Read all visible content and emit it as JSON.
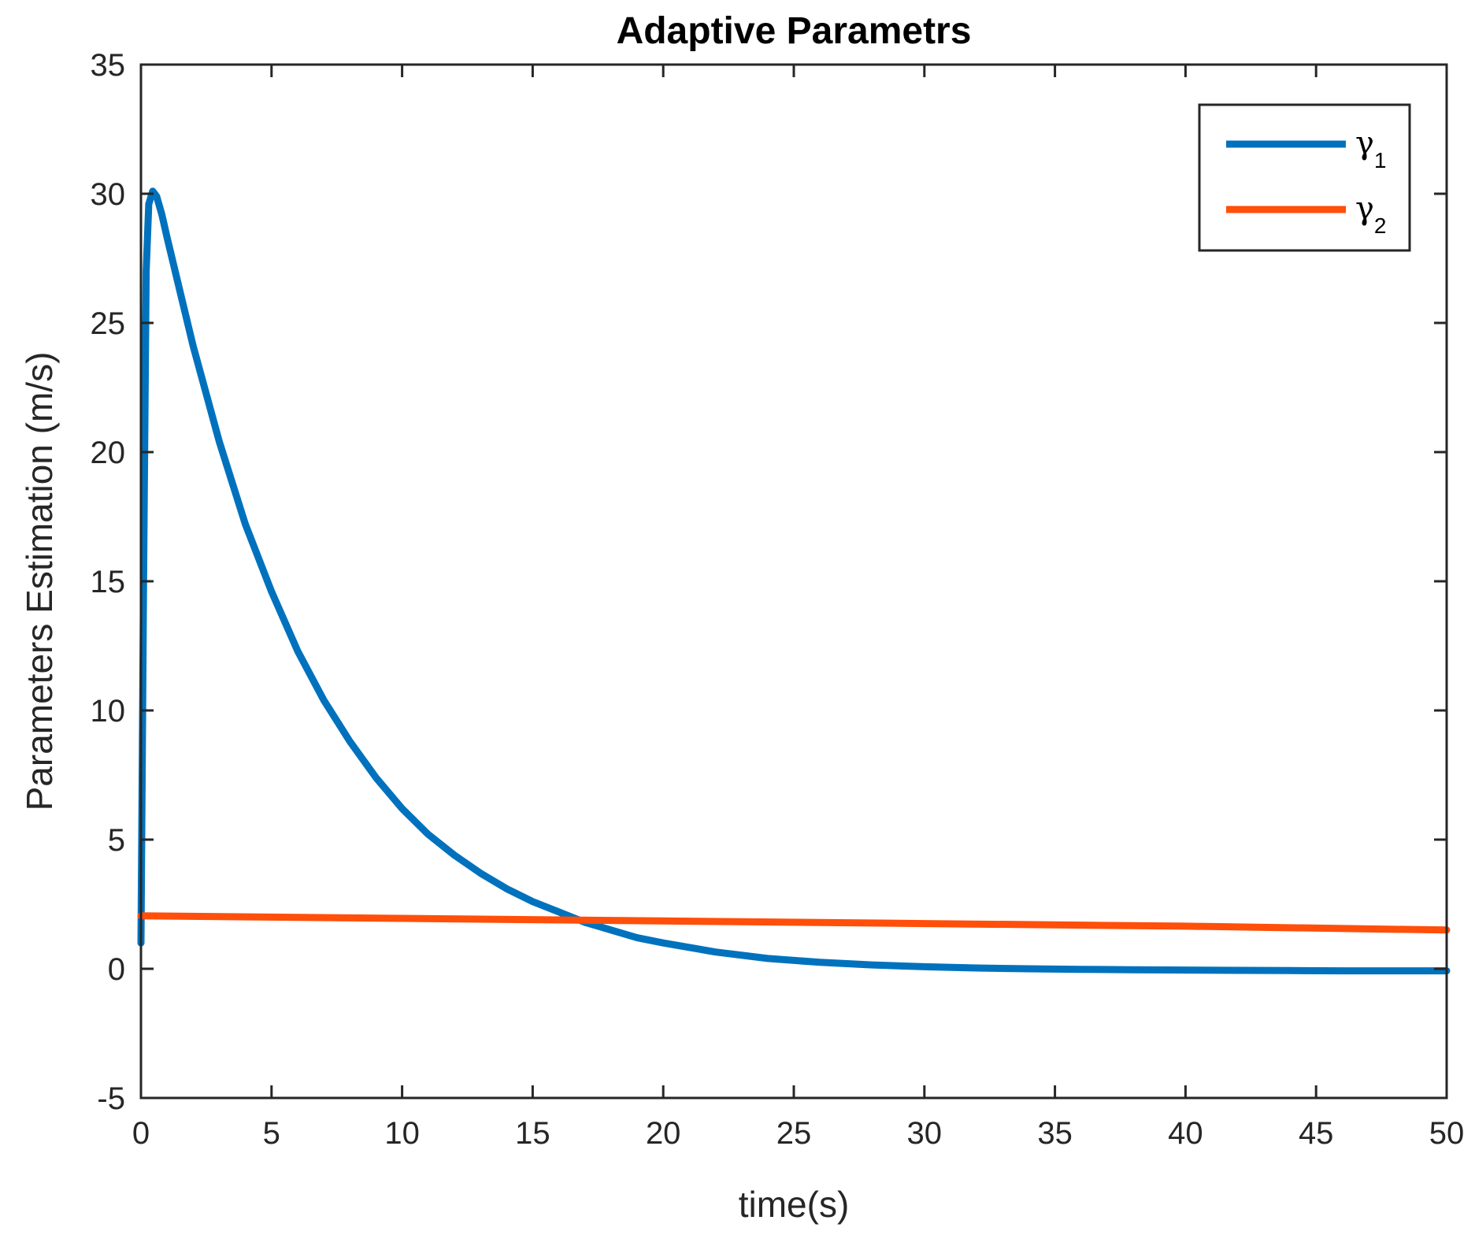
{
  "chart_data": {
    "type": "line",
    "title": "Adaptive Parametrs",
    "xlabel": "time(s)",
    "ylabel": "Parameters Estimation (m/s)",
    "xlim": [
      0,
      50
    ],
    "ylim": [
      -5,
      35
    ],
    "xticks": [
      0,
      5,
      10,
      15,
      20,
      25,
      30,
      35,
      40,
      45,
      50
    ],
    "yticks": [
      -5,
      0,
      5,
      10,
      15,
      20,
      25,
      30,
      35
    ],
    "grid": false,
    "legend_position": "top-right",
    "series": [
      {
        "symbol": "γ",
        "subscript": "1",
        "color": "#0072BD",
        "x": [
          0,
          0.1,
          0.2,
          0.3,
          0.45,
          0.6,
          0.8,
          1,
          1.5,
          2,
          3,
          4,
          5,
          6,
          7,
          8,
          9,
          10,
          11,
          12,
          13,
          14,
          15,
          16,
          17,
          18,
          19,
          20,
          22,
          24,
          26,
          28,
          30,
          32,
          34,
          36,
          38,
          40,
          42,
          44,
          46,
          48,
          50
        ],
        "y": [
          1,
          15,
          27,
          29.6,
          30.1,
          29.9,
          29.2,
          28.3,
          26.2,
          24.1,
          20.4,
          17.2,
          14.6,
          12.3,
          10.4,
          8.8,
          7.4,
          6.2,
          5.2,
          4.4,
          3.7,
          3.1,
          2.6,
          2.2,
          1.8,
          1.5,
          1.2,
          1.0,
          0.65,
          0.4,
          0.25,
          0.15,
          0.08,
          0.03,
          0.0,
          -0.02,
          -0.04,
          -0.05,
          -0.06,
          -0.07,
          -0.08,
          -0.08,
          -0.08
        ]
      },
      {
        "symbol": "γ",
        "subscript": "2",
        "color": "#FF4F0A",
        "x": [
          0,
          10,
          20,
          30,
          40,
          50
        ],
        "y": [
          2.05,
          1.95,
          1.85,
          1.75,
          1.65,
          1.5
        ]
      }
    ]
  }
}
